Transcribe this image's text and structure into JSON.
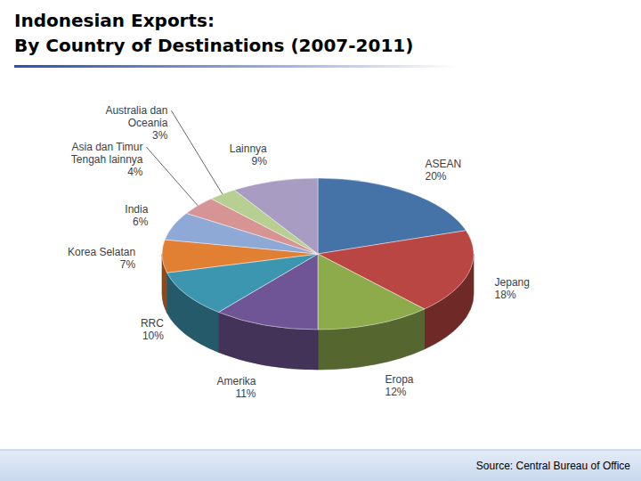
{
  "chart_data": {
    "type": "pie",
    "title": "Indonesian Exports:",
    "subtitle": "By Country of Destinations (2007-2011)",
    "categories": [
      "ASEAN",
      "Jepang",
      "Eropa",
      "Amerika",
      "RRC",
      "Korea Selatan",
      "India",
      "Asia dan Timur Tengah lainnya",
      "Australia dan Oceania",
      "Lainnya"
    ],
    "values": [
      20,
      18,
      12,
      11,
      10,
      7,
      6,
      4,
      3,
      9
    ],
    "value_labels": [
      "20%",
      "18%",
      "12%",
      "11%",
      "10%",
      "7%",
      "6%",
      "4%",
      "3%",
      "9%"
    ],
    "colors": [
      "#4572a7",
      "#b94643",
      "#8eab4c",
      "#6f5595",
      "#3d96b0",
      "#e17f33",
      "#8ea9d5",
      "#d69594",
      "#b8cf93",
      "#a99cc3"
    ],
    "data_labels": true,
    "annotations": [
      "Source: Central Bureau of Office"
    ]
  }
}
